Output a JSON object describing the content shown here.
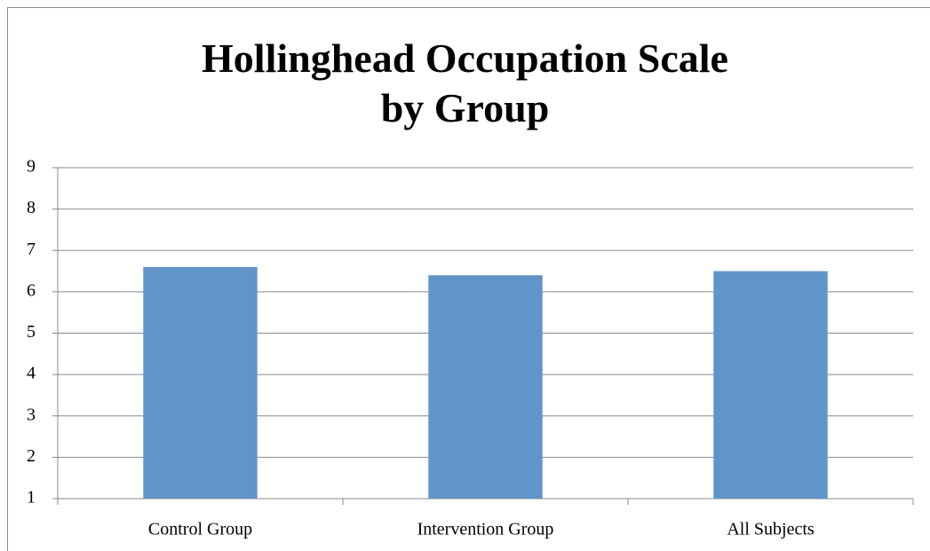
{
  "chart_data": {
    "type": "bar",
    "title": "Hollinghead Occupation Scale by Group",
    "categories": [
      "Control Group",
      "Intervention Group",
      "All Subjects"
    ],
    "values": [
      6.6,
      6.4,
      6.5
    ],
    "color": "#6194c8",
    "ylim": [
      1,
      9
    ],
    "yticks": [
      1,
      2,
      3,
      4,
      5,
      6,
      7,
      8,
      9
    ],
    "grid": true
  }
}
